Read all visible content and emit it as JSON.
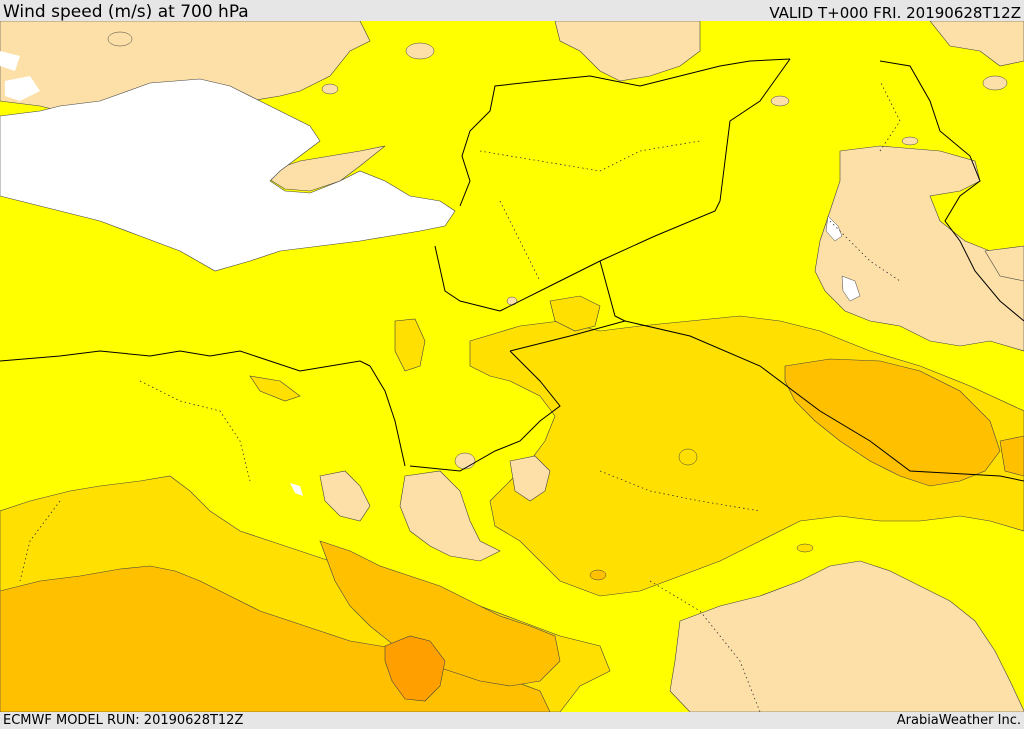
{
  "header": {
    "title": "Wind speed (m/s) at 700 hPa",
    "valid": "VALID T+000 FRI. 20190628T12Z"
  },
  "footer": {
    "model_run": "ECMWF MODEL RUN: 20190628T12Z",
    "credit": "ArabiaWeather Inc."
  },
  "colors": {
    "light": "#fde0a8",
    "yellow": "#ffff00",
    "gold": "#ffe000",
    "amber": "#ffc000",
    "orange": "#ffa000",
    "sea": "#ffffff",
    "border": "#000000"
  }
}
